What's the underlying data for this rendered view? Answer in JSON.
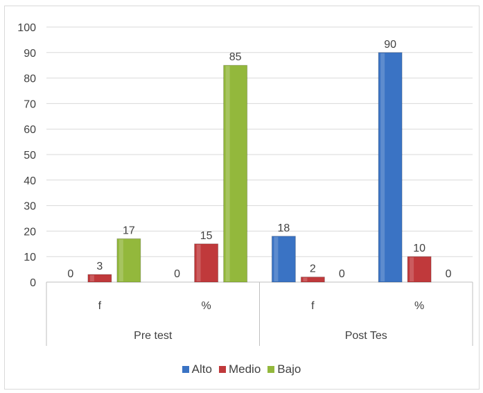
{
  "chart_data": {
    "type": "bar",
    "group_labels": [
      "Pre test",
      "Post Tes"
    ],
    "categories": [
      "f",
      "%",
      "f",
      "%"
    ],
    "series": [
      {
        "name": "Alto",
        "values": [
          0,
          0,
          18,
          90
        ],
        "color": "#3a73c4"
      },
      {
        "name": "Medio",
        "values": [
          3,
          15,
          2,
          10
        ],
        "color": "#c0393b"
      },
      {
        "name": "Bajo",
        "values": [
          17,
          85,
          0,
          0
        ],
        "color": "#93b83c"
      }
    ],
    "ylim": [
      0,
      100
    ],
    "yticks": [
      0,
      10,
      20,
      30,
      40,
      50,
      60,
      70,
      80,
      90,
      100
    ],
    "data_labels": [
      [
        "0",
        "0",
        "18",
        "90"
      ],
      [
        "3",
        "15",
        "2",
        "10"
      ],
      [
        "17",
        "85",
        "0",
        "0"
      ]
    ],
    "grid": true,
    "legend_position": "bottom"
  }
}
